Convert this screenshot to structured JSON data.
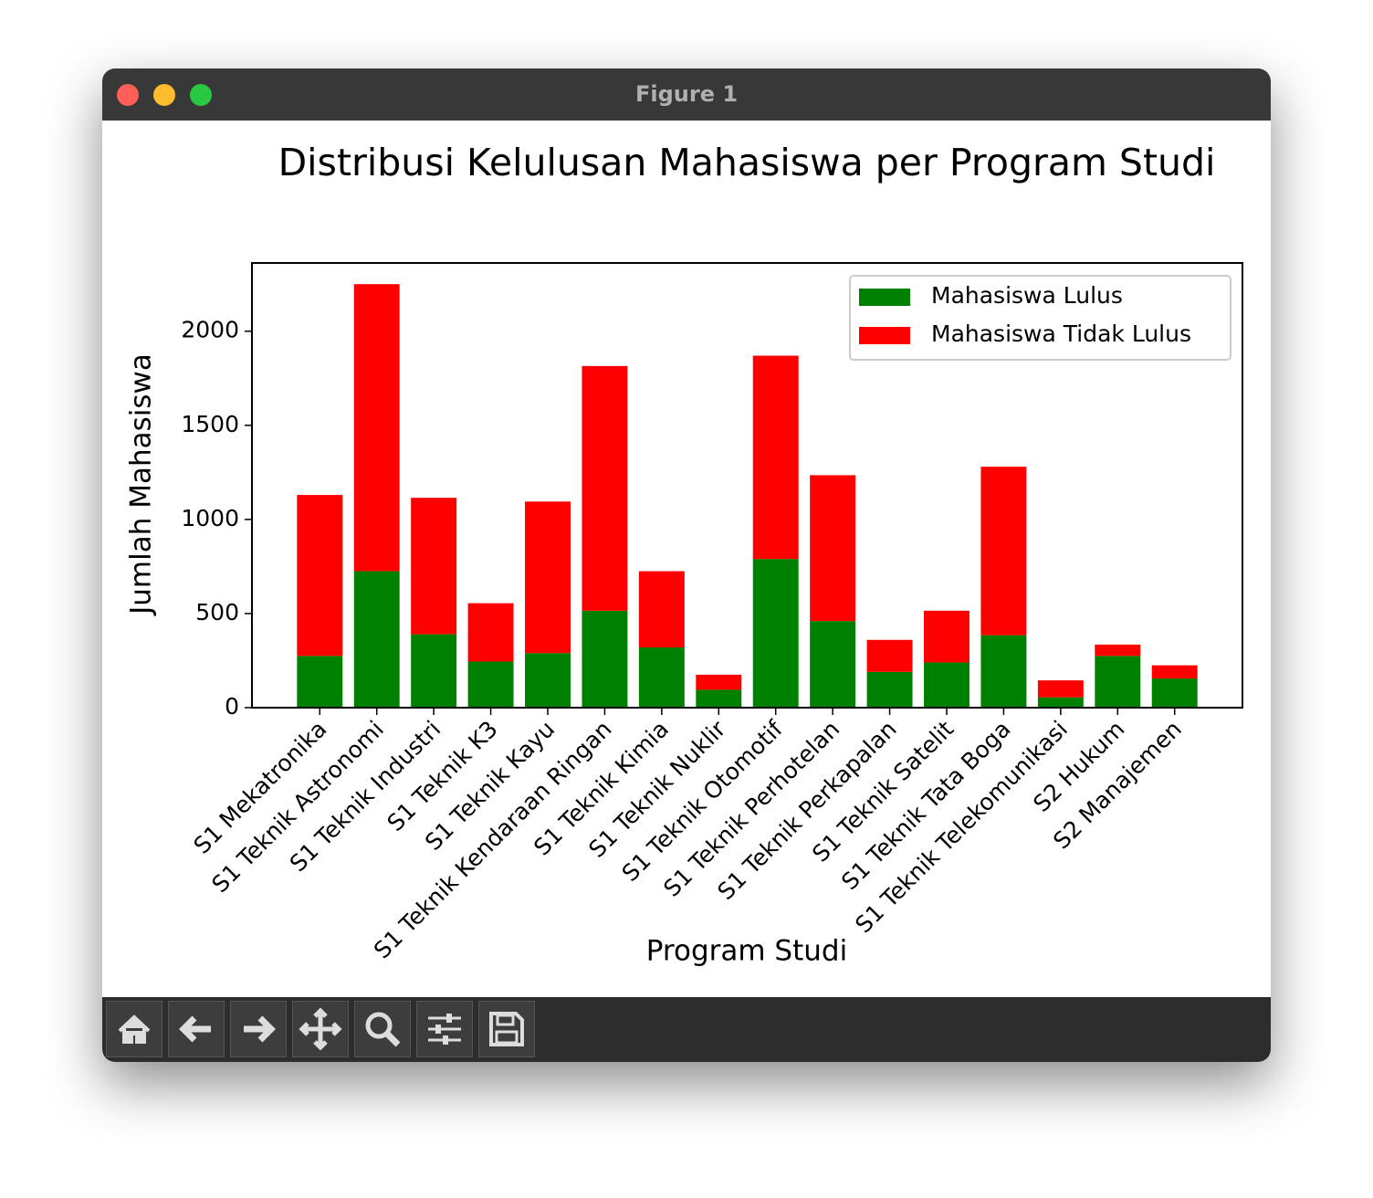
{
  "window": {
    "title": "Figure 1"
  },
  "chart_data": {
    "type": "stacked-bar",
    "title": "Distribusi Kelulusan Mahasiswa per Program Studi",
    "x_label": "Program Studi",
    "y_label": "Jumlah Mahasiswa",
    "categories": [
      "S1 Mekatronika",
      "S1 Teknik Astronomi",
      "S1 Teknik Industri",
      "S1 Teknik K3",
      "S1 Teknik Kayu",
      "S1 Teknik Kendaraan Ringan",
      "S1 Teknik Kimia",
      "S1 Teknik Nuklir",
      "S1 Teknik Otomotif",
      "S1 Teknik Perhotelan",
      "S1 Teknik Perkapalan",
      "S1 Teknik Satelit",
      "S1 Teknik Tata Boga",
      "S1 Teknik Telekomunikasi",
      "S2 Hukum",
      "S2 Manajemen"
    ],
    "series": [
      {
        "name": "Mahasiswa Lulus",
        "color": "#008000",
        "values": [
          275,
          725,
          390,
          245,
          290,
          515,
          320,
          95,
          790,
          460,
          190,
          240,
          385,
          55,
          275,
          155
        ]
      },
      {
        "name": "Mahasiswa Tidak Lulus",
        "color": "#ff0000",
        "values": [
          855,
          1525,
          725,
          310,
          805,
          1300,
          405,
          80,
          1080,
          775,
          170,
          275,
          895,
          90,
          60,
          70
        ]
      }
    ],
    "ylim": [
      0,
      2362.5
    ],
    "yticks": [
      0,
      500,
      1000,
      1500,
      2000
    ],
    "legend": "upper right"
  }
}
